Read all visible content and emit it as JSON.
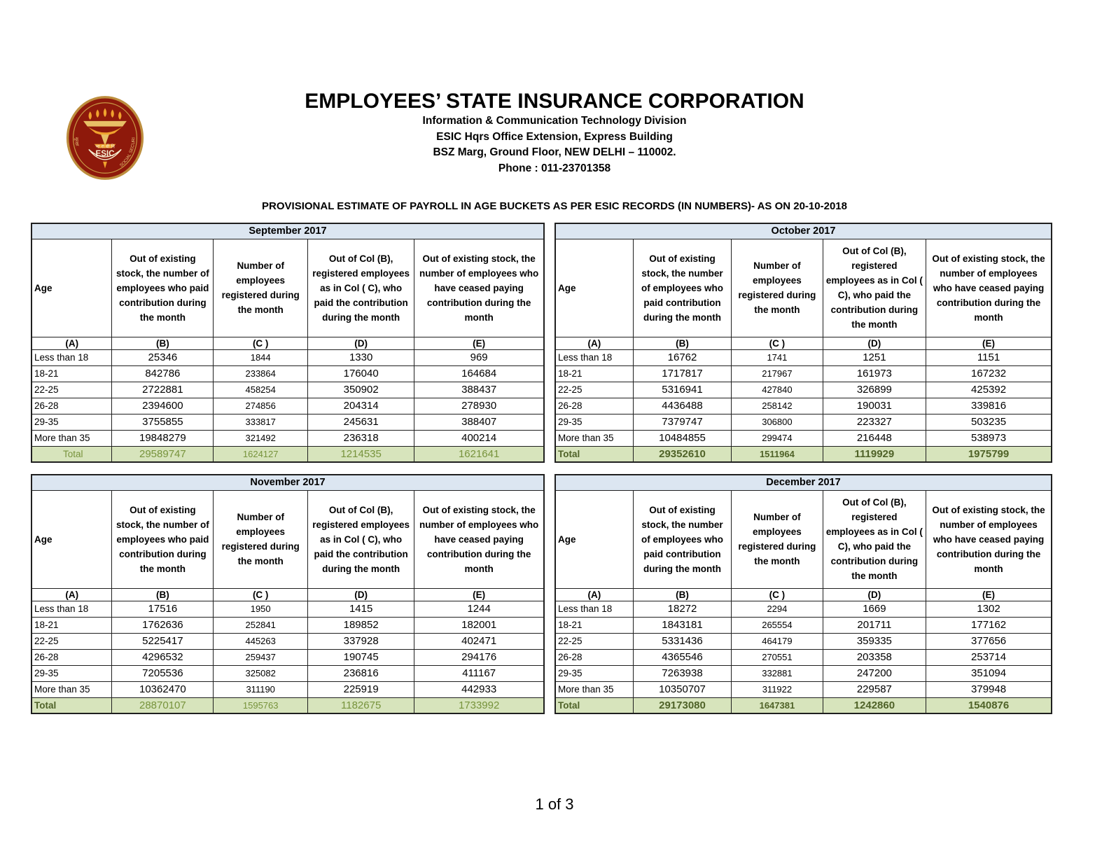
{
  "header": {
    "org_name": "EMPLOYEES’ STATE INSURANCE CORPORATION",
    "division": "Information & Communication Technology Division",
    "address_line1": "ESIC Hqrs Office Extension, Express Building",
    "address_line2": "BSZ Marg, Ground Floor, NEW DELHI – 110002.",
    "phone": "Phone : 011-23701358",
    "logo": {
      "acronym": "ESIC",
      "curved_text": "SOCIAL SECURITY"
    }
  },
  "report_title": "PROVISIONAL ESTIMATE OF PAYROLL IN AGE BUCKETS AS PER ESIC RECORDS (IN NUMBERS)- AS ON 20-10-2018",
  "column_headers": {
    "age": "Age",
    "b": "Out of existing stock, the number of employees who paid contribution during the month",
    "c": "Number of employees registered during the month",
    "d": "Out of Col (B), registered employees as in Col ( C), who paid the contribution during the month",
    "e": "Out of existing stock, the number of  employees  who have ceased paying contribution during the month"
  },
  "column_letters": [
    "(A)",
    "(B)",
    "(C )",
    "(D)",
    "(E)"
  ],
  "tables": [
    {
      "month": "September 2017",
      "total_label": "Total",
      "label_bold": false,
      "numbers_bold": false,
      "rows": [
        [
          "Less than 18",
          "25346",
          "1844",
          "1330",
          "969"
        ],
        [
          "18-21",
          "842786",
          "233864",
          "176040",
          "164684"
        ],
        [
          "22-25",
          "2722881",
          "458254",
          "350902",
          "388437"
        ],
        [
          "26-28",
          "2394600",
          "274856",
          "204314",
          "278930"
        ],
        [
          "29-35",
          "3755855",
          "333817",
          "245631",
          "388407"
        ],
        [
          "More than 35",
          "19848279",
          "321492",
          "236318",
          "400214"
        ]
      ],
      "totals": [
        "29589747",
        "1624127",
        "1214535",
        "1621641"
      ]
    },
    {
      "month": "October 2017",
      "total_label": "Total",
      "label_bold": true,
      "numbers_bold": true,
      "rows": [
        [
          "Less than 18",
          "16762",
          "1741",
          "1251",
          "1151"
        ],
        [
          "18-21",
          "1717817",
          "217967",
          "161973",
          "167232"
        ],
        [
          "22-25",
          "5316941",
          "427840",
          "326899",
          "425392"
        ],
        [
          "26-28",
          "4436488",
          "258142",
          "190031",
          "339816"
        ],
        [
          "29-35",
          "7379747",
          "306800",
          "223327",
          "503235"
        ],
        [
          "More than 35",
          "10484855",
          "299474",
          "216448",
          "538973"
        ]
      ],
      "totals": [
        "29352610",
        "1511964",
        "1119929",
        "1975799"
      ]
    },
    {
      "month": "November 2017",
      "total_label": "Total",
      "label_bold": true,
      "numbers_bold": false,
      "rows": [
        [
          "Less than 18",
          "17516",
          "1950",
          "1415",
          "1244"
        ],
        [
          "18-21",
          "1762636",
          "252841",
          "189852",
          "182001"
        ],
        [
          "22-25",
          "5225417",
          "445263",
          "337928",
          "402471"
        ],
        [
          "26-28",
          "4296532",
          "259437",
          "190745",
          "294176"
        ],
        [
          "29-35",
          "7205536",
          "325082",
          "236816",
          "411167"
        ],
        [
          "More than 35",
          "10362470",
          "311190",
          "225919",
          "442933"
        ]
      ],
      "totals": [
        "28870107",
        "1595763",
        "1182675",
        "1733992"
      ]
    },
    {
      "month": "December 2017",
      "total_label": "Total",
      "label_bold": true,
      "numbers_bold": true,
      "rows": [
        [
          "Less than 18",
          "18272",
          "2294",
          "1669",
          "1302"
        ],
        [
          "18-21",
          "1843181",
          "265554",
          "201711",
          "177162"
        ],
        [
          "22-25",
          "5331436",
          "464179",
          "359335",
          "377656"
        ],
        [
          "26-28",
          "4365546",
          "270551",
          "203358",
          "253714"
        ],
        [
          "29-35",
          "7263938",
          "332881",
          "247200",
          "351094"
        ],
        [
          "More than 35",
          "10350707",
          "311922",
          "229587",
          "379948"
        ]
      ],
      "totals": [
        "29173080",
        "1647381",
        "1242860",
        "1540876"
      ]
    }
  ],
  "footer": {
    "page_number": "1 of 3"
  },
  "colors": {
    "month_header_bg": "#dce6f1",
    "total_row_bg": "#d7e4bc",
    "total_text_olive": "#77933c",
    "total_text_dark": "#4f6228",
    "logo_maroon": "#8e190b",
    "logo_gold": "#bd8e3e",
    "logo_flame": "#f0a32e",
    "logo_cream": "#f7efd3"
  }
}
